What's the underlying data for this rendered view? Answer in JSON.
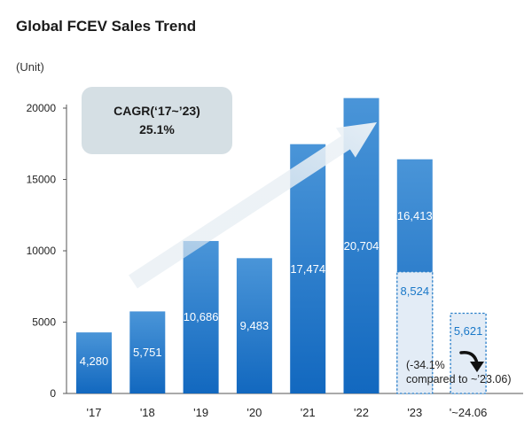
{
  "title": "Global FCEV Sales Trend",
  "unit_label": "(Unit)",
  "cagr": {
    "line1": "CAGR(‘17~’23)",
    "line2": "25.1%"
  },
  "note": {
    "line1": "(-34.1%",
    "line2": "compared to ~’23.06)"
  },
  "colors": {
    "bar": "#1a76c8",
    "bar_top": "#3f8fd6",
    "dashed": "#2a7fc9",
    "dashed_fill": "#e3ecf6"
  },
  "chart_data": {
    "type": "bar",
    "title": "Global FCEV Sales Trend",
    "ylabel": "(Unit)",
    "ylim": [
      0,
      20000
    ],
    "yticks": [
      0,
      5000,
      10000,
      15000,
      20000
    ],
    "categories": [
      "'17",
      "'18",
      "'19",
      "'20",
      "'21",
      "'22",
      "'23",
      "'~24.06"
    ],
    "bars": [
      {
        "category": "'17",
        "value": 4280,
        "label": "4,280"
      },
      {
        "category": "'18",
        "value": 5751,
        "label": "5,751"
      },
      {
        "category": "'19",
        "value": 10686,
        "label": "10,686"
      },
      {
        "category": "'20",
        "value": 9483,
        "label": "9,483"
      },
      {
        "category": "'21",
        "value": 17474,
        "label": "17,474"
      },
      {
        "category": "'22",
        "value": 20704,
        "label": "20,704"
      },
      {
        "category": "'23",
        "value": 16413,
        "label": "16,413"
      },
      {
        "category": "'~24.06",
        "value": null,
        "label": ""
      }
    ],
    "period_bars": [
      {
        "category": "'23",
        "value": 8524,
        "label": "8,524",
        "period": "~'23.06",
        "style": "dashed"
      },
      {
        "category": "'~24.06",
        "value": 5621,
        "label": "5,621",
        "period": "~'24.06",
        "style": "dashed"
      }
    ],
    "annotations": [
      "CAGR(‘17~’23)",
      "25.1%",
      "(-34.1%",
      "compared to ~’23.06)"
    ]
  }
}
